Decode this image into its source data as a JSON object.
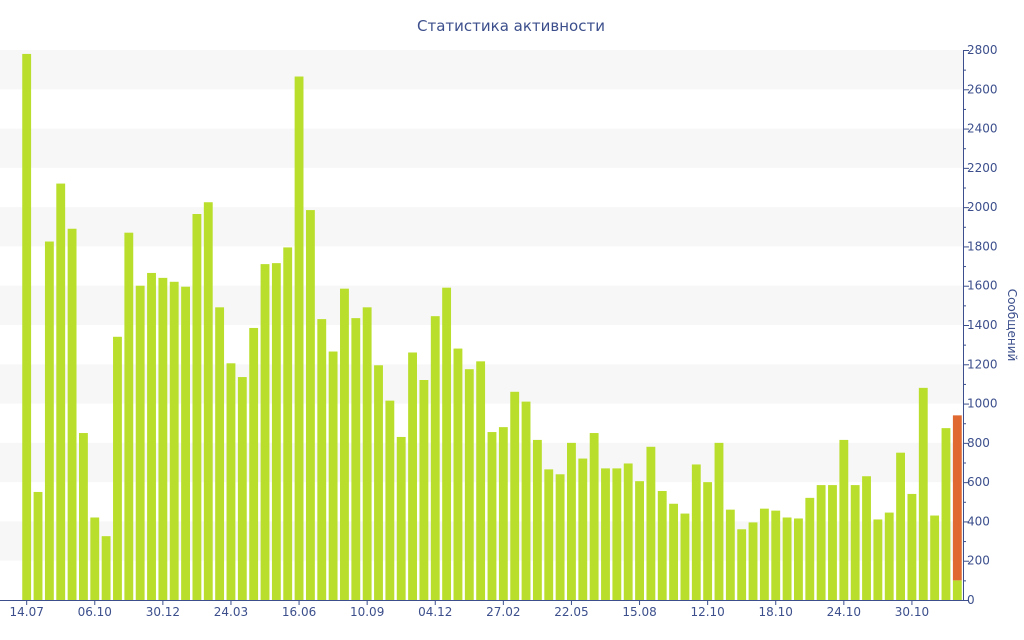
{
  "chart_data": {
    "type": "bar",
    "title": "Статистика активности",
    "xlabel": "",
    "ylabel": "Сообщений",
    "ylim": [
      0,
      2800
    ],
    "y_ticks": [
      0,
      200,
      400,
      600,
      800,
      1000,
      1200,
      1400,
      1600,
      1800,
      2000,
      2200,
      2400,
      2600,
      2800
    ],
    "y_axis_side": "right",
    "x_tick_labels": [
      {
        "index": 0,
        "label": "14.07"
      },
      {
        "index": 6,
        "label": "06.10"
      },
      {
        "index": 12,
        "label": "30.12"
      },
      {
        "index": 18,
        "label": "24.03"
      },
      {
        "index": 24,
        "label": "16.06"
      },
      {
        "index": 30,
        "label": "10.09"
      },
      {
        "index": 36,
        "label": "04.12"
      },
      {
        "index": 42,
        "label": "27.02"
      },
      {
        "index": 48,
        "label": "22.05"
      },
      {
        "index": 54,
        "label": "15.08"
      },
      {
        "index": 60,
        "label": "12.10"
      },
      {
        "index": 66,
        "label": "18.10"
      },
      {
        "index": 72,
        "label": "24.10"
      },
      {
        "index": 78,
        "label": "30.10"
      }
    ],
    "series": [
      {
        "values": [
          2780,
          550,
          1825,
          2120,
          1890,
          850,
          420,
          325,
          1340,
          1870,
          1600,
          1665,
          1640,
          1620,
          1595,
          1965,
          2025,
          1490,
          1205,
          1135,
          1385,
          1710,
          1715,
          1795,
          2665,
          1985,
          1430,
          1265,
          1585,
          1435,
          1490,
          1195,
          1015,
          830,
          1260,
          1120,
          1445,
          1590,
          1280,
          1175,
          1215,
          855,
          880,
          1060,
          1010,
          815,
          665,
          640,
          800,
          720,
          850,
          670,
          670,
          695,
          605,
          780,
          555,
          490,
          440,
          690,
          600,
          800,
          460,
          360,
          395,
          465,
          455,
          420,
          415,
          520,
          585,
          585,
          815,
          585,
          630,
          410,
          445,
          750,
          540,
          1080,
          430,
          875,
          100
        ],
        "color": "#b9de2b"
      },
      {
        "values": [
          0,
          0,
          0,
          0,
          0,
          0,
          0,
          0,
          0,
          0,
          0,
          0,
          0,
          0,
          0,
          0,
          0,
          0,
          0,
          0,
          0,
          0,
          0,
          0,
          0,
          0,
          0,
          0,
          0,
          0,
          0,
          0,
          0,
          0,
          0,
          0,
          0,
          0,
          0,
          0,
          0,
          0,
          0,
          0,
          0,
          0,
          0,
          0,
          0,
          0,
          0,
          0,
          0,
          0,
          0,
          0,
          0,
          0,
          0,
          0,
          0,
          0,
          0,
          0,
          0,
          0,
          0,
          0,
          0,
          0,
          0,
          0,
          0,
          0,
          0,
          0,
          0,
          0,
          0,
          0,
          0,
          0,
          840
        ],
        "color": "#e06932",
        "stacked_on_previous": true
      }
    ],
    "grid": true,
    "grid_band_color": "#f7f7f7",
    "axis_color": "#3c4f8c"
  }
}
